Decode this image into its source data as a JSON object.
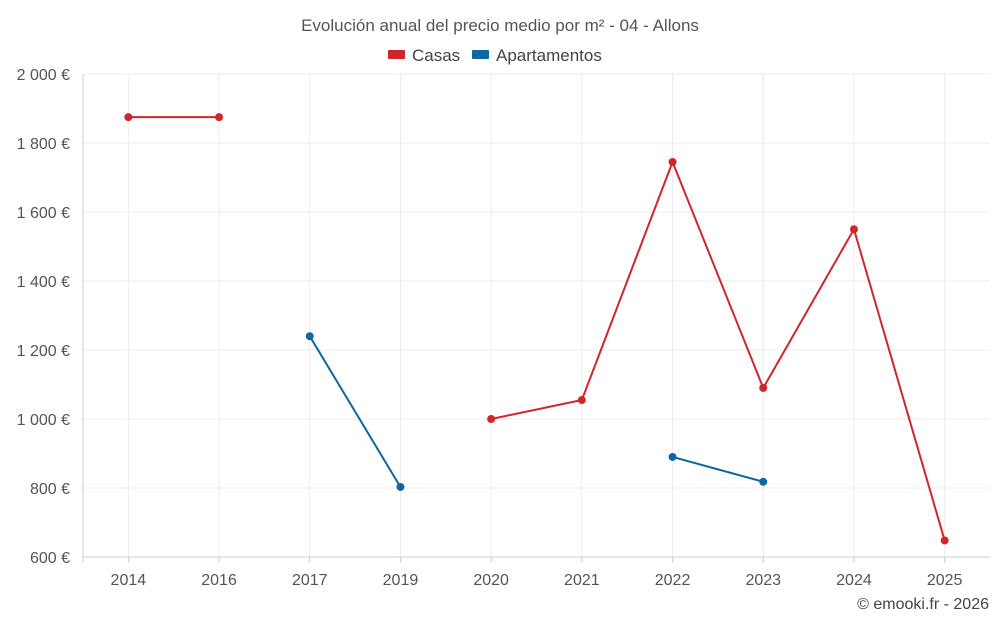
{
  "chart_data": {
    "type": "line",
    "title": "Evolución anual del precio medio por m² - 04 - Allons",
    "categories": [
      "2014",
      "2016",
      "2017",
      "2019",
      "2020",
      "2021",
      "2022",
      "2023",
      "2024",
      "2025"
    ],
    "y_tick_labels": [
      "600 €",
      "800 €",
      "1 000 €",
      "1 200 €",
      "1 400 €",
      "1 600 €",
      "1 800 €",
      "2 000 €"
    ],
    "y_ticks": [
      600,
      800,
      1000,
      1200,
      1400,
      1600,
      1800,
      2000
    ],
    "ylim": [
      600,
      2000
    ],
    "grid": true,
    "legend_position": "top-center",
    "series": [
      {
        "name": "Casas",
        "color": "#d0262b",
        "values": [
          1875,
          1875,
          null,
          null,
          1000,
          1055,
          1745,
          1090,
          1550,
          648
        ]
      },
      {
        "name": "Apartamentos",
        "color": "#0d68a1",
        "values": [
          null,
          null,
          1240,
          803,
          null,
          null,
          890,
          818,
          null,
          null
        ]
      }
    ]
  },
  "credit": "© emooki.fr - 2026"
}
